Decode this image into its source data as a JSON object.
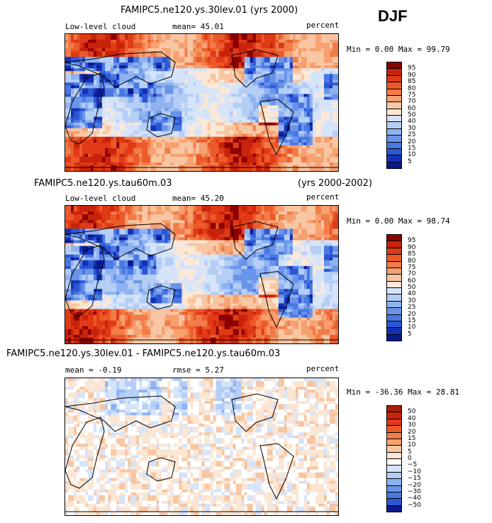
{
  "season": "DJF",
  "panels": [
    {
      "title": "FAMIPC5.ne120.ys.30lev.01 (yrs 2000)",
      "title_right": "",
      "left_label": "Low-level cloud",
      "stats": "mean=  45.01",
      "units": "percent",
      "minmax": "Min =   0.00 Max =  99.79",
      "kind": "abs",
      "levels": [
        "95",
        "90",
        "85",
        "80",
        "75",
        "70",
        "60",
        "50",
        "40",
        "30",
        "25",
        "20",
        "15",
        "10",
        "5"
      ],
      "colors": [
        "#8b0000",
        "#c9230c",
        "#e03a16",
        "#ec5a2a",
        "#f27c48",
        "#f7a070",
        "#f8c6a2",
        "#fbe8d6",
        "#d6e4fa",
        "#b4cef6",
        "#8fb2f1",
        "#6a94ea",
        "#4a78e2",
        "#2c57d4",
        "#1432b7",
        "#0a1a8e"
      ]
    },
    {
      "title": "FAMIPC5.ne120.ys.tau60m.03",
      "title_right": "(yrs 2000-2002)",
      "left_label": "Low-level cloud",
      "stats": "mean=  45.20",
      "units": "percent",
      "minmax": "Min =   0.00 Max =  98.74",
      "kind": "abs",
      "levels": [
        "95",
        "90",
        "85",
        "80",
        "75",
        "70",
        "60",
        "50",
        "40",
        "30",
        "25",
        "20",
        "15",
        "10",
        "5"
      ],
      "colors": [
        "#8b0000",
        "#c9230c",
        "#e03a16",
        "#ec5a2a",
        "#f27c48",
        "#f7a070",
        "#f8c6a2",
        "#fbe8d6",
        "#d6e4fa",
        "#b4cef6",
        "#8fb2f1",
        "#6a94ea",
        "#4a78e2",
        "#2c57d4",
        "#1432b7",
        "#0a1a8e"
      ]
    },
    {
      "title": "FAMIPC5.ne120.ys.30lev.01 - FAMIPC5.ne120.ys.tau60m.03",
      "title_right": "",
      "left_label": "mean =  -0.19",
      "stats": "rmse =   5.27",
      "units": "percent",
      "minmax": "Min = -36.36 Max =  28.81",
      "kind": "diff",
      "levels": [
        "50",
        "40",
        "30",
        "20",
        "15",
        "10",
        "5",
        "0",
        "−5",
        "−10",
        "−15",
        "−20",
        "−30",
        "−40",
        "−50"
      ],
      "colors": [
        "#a3200a",
        "#c9230c",
        "#e03a16",
        "#ec5a2a",
        "#f27c48",
        "#f7a070",
        "#f8c6a2",
        "#fbe6d4",
        "#ffffff",
        "#d6e4fa",
        "#b4cef6",
        "#8fb2f1",
        "#6a94ea",
        "#4a78e2",
        "#2c57d4",
        "#0a1a8e"
      ]
    }
  ]
}
